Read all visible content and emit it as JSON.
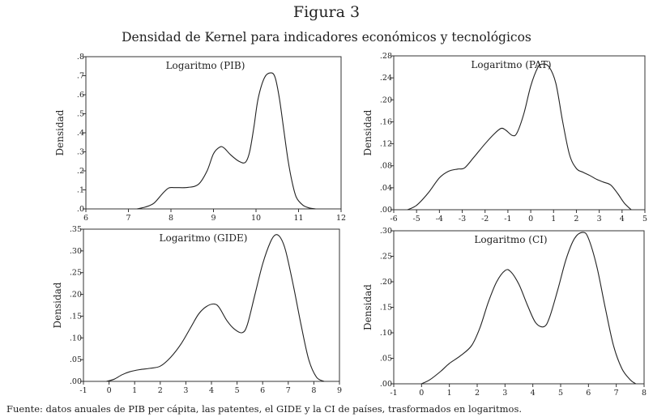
{
  "figure": {
    "label": "Figura 3",
    "title": "Densidad de Kernel para indicadores económicos y tecnológicos",
    "source": "Fuente: datos anuales de PIB per cápita, las patentes, el GIDE y la CI de países, trasformados en logaritmos."
  },
  "chart_data": [
    {
      "type": "line",
      "title": "Logaritmo (PIB)",
      "ylabel": "Densidad",
      "xlim": [
        6,
        12
      ],
      "ylim": [
        0,
        0.8
      ],
      "xticks": [
        6,
        7,
        8,
        9,
        10,
        11,
        12
      ],
      "xtick_labels": [
        "6",
        "7",
        "8",
        "9",
        "10",
        "11",
        "12"
      ],
      "yticks": [
        0,
        0.1,
        0.2,
        0.3,
        0.4,
        0.5,
        0.6,
        0.7,
        0.8
      ],
      "ytick_labels": [
        ".0",
        ".1",
        ".2",
        ".3",
        ".4",
        ".5",
        ".6",
        ".7",
        ".8"
      ],
      "grid": false,
      "series": [
        {
          "x": [
            7.2,
            7.4,
            7.6,
            7.8,
            7.95,
            8.1,
            8.4,
            8.65,
            8.85,
            9.0,
            9.15,
            9.25,
            9.4,
            9.6,
            9.75,
            9.85,
            9.95,
            10.05,
            10.2,
            10.35,
            10.45,
            10.55,
            10.65,
            10.75,
            10.85,
            10.95,
            11.1,
            11.25,
            11.4
          ],
          "y": [
            0.0,
            0.01,
            0.03,
            0.08,
            0.11,
            0.112,
            0.113,
            0.13,
            0.2,
            0.29,
            0.325,
            0.32,
            0.285,
            0.25,
            0.245,
            0.3,
            0.43,
            0.58,
            0.69,
            0.715,
            0.69,
            0.58,
            0.42,
            0.26,
            0.14,
            0.06,
            0.02,
            0.005,
            0.0
          ]
        }
      ]
    },
    {
      "type": "line",
      "title": "Logaritmo (PAT)",
      "ylabel": "Densidad",
      "xlim": [
        -6,
        5
      ],
      "ylim": [
        0,
        0.28
      ],
      "xticks": [
        -6,
        -5,
        -4,
        -3,
        -2,
        -1,
        0,
        1,
        2,
        3,
        4,
        5
      ],
      "xtick_labels": [
        "-6",
        "-5",
        "-4",
        "-3",
        "-2",
        "-1",
        "0",
        "1",
        "2",
        "3",
        "4",
        "5"
      ],
      "yticks": [
        0,
        0.04,
        0.08,
        0.12,
        0.16,
        0.2,
        0.24,
        0.28
      ],
      "ytick_labels": [
        ".00",
        ".04",
        ".08",
        ".12",
        ".16",
        ".20",
        ".24",
        ".28"
      ],
      "grid": false,
      "series": [
        {
          "x": [
            -5.4,
            -5.0,
            -4.5,
            -4.0,
            -3.6,
            -3.2,
            -2.9,
            -2.5,
            -2.0,
            -1.6,
            -1.3,
            -1.1,
            -0.8,
            -0.6,
            -0.3,
            0.0,
            0.3,
            0.5,
            0.8,
            1.1,
            1.4,
            1.7,
            2.0,
            2.3,
            2.6,
            2.9,
            3.2,
            3.5,
            3.8,
            4.1,
            4.4
          ],
          "y": [
            0.0,
            0.008,
            0.03,
            0.058,
            0.07,
            0.074,
            0.076,
            0.095,
            0.12,
            0.138,
            0.148,
            0.145,
            0.135,
            0.14,
            0.175,
            0.225,
            0.258,
            0.265,
            0.26,
            0.23,
            0.16,
            0.1,
            0.075,
            0.068,
            0.062,
            0.055,
            0.05,
            0.045,
            0.03,
            0.012,
            0.0
          ]
        }
      ]
    },
    {
      "type": "line",
      "title": "Logaritmo (GIDE)",
      "ylabel": "Densidad",
      "xlim": [
        -1,
        9
      ],
      "ylim": [
        0,
        0.35
      ],
      "xticks": [
        -1,
        0,
        1,
        2,
        3,
        4,
        5,
        6,
        7,
        8,
        9
      ],
      "xtick_labels": [
        "-1",
        "0",
        "1",
        "2",
        "3",
        "4",
        "5",
        "6",
        "7",
        "8",
        "9"
      ],
      "yticks": [
        0,
        0.05,
        0.1,
        0.15,
        0.2,
        0.25,
        0.3,
        0.35
      ],
      "ytick_labels": [
        ".00",
        ".05",
        ".10",
        ".15",
        ".20",
        ".25",
        ".30",
        ".35"
      ],
      "grid": false,
      "series": [
        {
          "x": [
            -0.1,
            0.2,
            0.5,
            0.8,
            1.2,
            1.6,
            2.0,
            2.4,
            2.8,
            3.2,
            3.5,
            3.8,
            4.1,
            4.3,
            4.6,
            4.9,
            5.2,
            5.4,
            5.7,
            6.0,
            6.3,
            6.5,
            6.7,
            6.9,
            7.2,
            7.5,
            7.8,
            8.1,
            8.4
          ],
          "y": [
            0.0,
            0.005,
            0.015,
            0.022,
            0.027,
            0.03,
            0.035,
            0.055,
            0.085,
            0.125,
            0.155,
            0.172,
            0.178,
            0.17,
            0.14,
            0.12,
            0.112,
            0.13,
            0.2,
            0.27,
            0.32,
            0.337,
            0.33,
            0.3,
            0.22,
            0.13,
            0.05,
            0.01,
            0.0
          ]
        }
      ]
    },
    {
      "type": "line",
      "title": "Logaritmo (CI)",
      "ylabel": "Densidad",
      "xlim": [
        -1,
        8
      ],
      "ylim": [
        0,
        0.3
      ],
      "xticks": [
        -1,
        0,
        1,
        2,
        3,
        4,
        5,
        6,
        7,
        8
      ],
      "xtick_labels": [
        "-1",
        "0",
        "1",
        "2",
        "3",
        "4",
        "5",
        "6",
        "7",
        "8"
      ],
      "yticks": [
        0,
        0.05,
        0.1,
        0.15,
        0.2,
        0.25,
        0.3
      ],
      "ytick_labels": [
        ".00",
        ".05",
        ".10",
        ".15",
        ".20",
        ".25",
        ".30"
      ],
      "grid": false,
      "series": [
        {
          "x": [
            0.0,
            0.3,
            0.7,
            1.0,
            1.4,
            1.8,
            2.1,
            2.4,
            2.7,
            3.0,
            3.2,
            3.5,
            3.8,
            4.1,
            4.4,
            4.6,
            4.9,
            5.2,
            5.5,
            5.8,
            6.0,
            6.3,
            6.6,
            6.9,
            7.2,
            7.5,
            7.7
          ],
          "y": [
            0.0,
            0.008,
            0.025,
            0.04,
            0.055,
            0.075,
            0.11,
            0.16,
            0.2,
            0.222,
            0.22,
            0.195,
            0.155,
            0.12,
            0.112,
            0.13,
            0.185,
            0.245,
            0.285,
            0.297,
            0.285,
            0.23,
            0.15,
            0.075,
            0.03,
            0.008,
            0.0
          ]
        }
      ]
    }
  ]
}
